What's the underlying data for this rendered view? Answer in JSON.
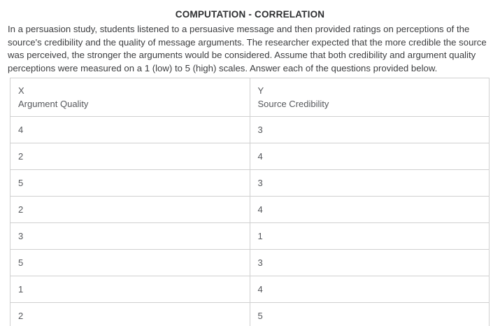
{
  "page": {
    "title": "COMPUTATION - CORRELATION",
    "description": "In a persuasion study, students listened to a persuasive message and then provided ratings on perceptions of the source's credibility and the quality of message arguments. The researcher expected that the more credible the source was perceived, the stronger the arguments would be considered. Assume that both credibility and argument quality perceptions were measured on a 1 (low) to 5 (high) scales. Answer each of the questions provided below."
  },
  "table": {
    "columns": [
      {
        "variable": "X",
        "label": "Argument Quality"
      },
      {
        "variable": "Y",
        "label": "Source Credibility"
      }
    ],
    "rows": [
      {
        "x": "4",
        "y": "3"
      },
      {
        "x": "2",
        "y": "4"
      },
      {
        "x": "5",
        "y": "3"
      },
      {
        "x": "2",
        "y": "4"
      },
      {
        "x": "3",
        "y": "1"
      },
      {
        "x": "5",
        "y": "3"
      },
      {
        "x": "1",
        "y": "4"
      },
      {
        "x": "2",
        "y": "5"
      }
    ]
  },
  "colors": {
    "background": "#ffffff",
    "title_text": "#2e2f31",
    "body_text": "#3c3d3f",
    "table_text": "#56585c",
    "table_border": "#d0d0d0"
  }
}
